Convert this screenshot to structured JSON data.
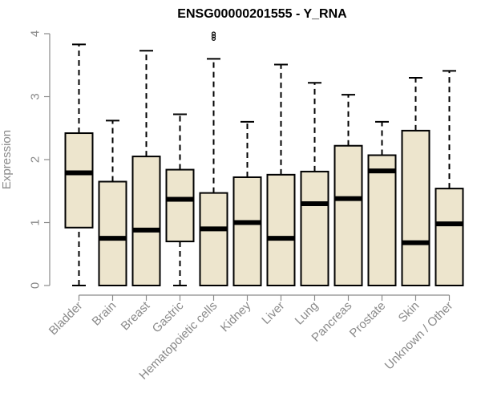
{
  "chart_data": {
    "type": "boxplot",
    "title": "ENSG00000201555 - Y_RNA",
    "xlabel": "",
    "ylabel": "Expression",
    "ylim": [
      0,
      4
    ],
    "yticks": [
      0,
      1,
      2,
      3,
      4
    ],
    "categories": [
      "Bladder",
      "Brain",
      "Breast",
      "Gastric",
      "Hematopoietic cells",
      "Kidney",
      "Liver",
      "Lung",
      "Pancreas",
      "Prostate",
      "Skin",
      "Unknown / Other"
    ],
    "boxes": [
      {
        "category": "Bladder",
        "min": 0.0,
        "q1": 0.92,
        "median": 1.79,
        "q3": 2.42,
        "max": 3.83,
        "outliers": []
      },
      {
        "category": "Brain",
        "min": 0.0,
        "q1": 0.0,
        "median": 0.75,
        "q3": 1.65,
        "max": 2.62,
        "outliers": []
      },
      {
        "category": "Breast",
        "min": 0.0,
        "q1": 0.0,
        "median": 0.88,
        "q3": 2.05,
        "max": 3.73,
        "outliers": []
      },
      {
        "category": "Gastric",
        "min": 0.0,
        "q1": 0.7,
        "median": 1.37,
        "q3": 1.84,
        "max": 2.72,
        "outliers": []
      },
      {
        "category": "Hematopoietic cells",
        "min": 0.0,
        "q1": 0.0,
        "median": 0.9,
        "q3": 1.47,
        "max": 3.6,
        "outliers": [
          3.92,
          3.96,
          4.0
        ]
      },
      {
        "category": "Kidney",
        "min": 0.0,
        "q1": 0.0,
        "median": 1.0,
        "q3": 1.72,
        "max": 2.6,
        "outliers": []
      },
      {
        "category": "Liver",
        "min": 0.0,
        "q1": 0.0,
        "median": 0.75,
        "q3": 1.76,
        "max": 3.51,
        "outliers": []
      },
      {
        "category": "Lung",
        "min": 0.0,
        "q1": 0.0,
        "median": 1.3,
        "q3": 1.81,
        "max": 3.22,
        "outliers": []
      },
      {
        "category": "Pancreas",
        "min": 0.0,
        "q1": 0.0,
        "median": 1.38,
        "q3": 2.22,
        "max": 3.03,
        "outliers": []
      },
      {
        "category": "Prostate",
        "min": 0.0,
        "q1": 0.0,
        "median": 1.82,
        "q3": 2.07,
        "max": 2.6,
        "outliers": []
      },
      {
        "category": "Skin",
        "min": 0.0,
        "q1": 0.0,
        "median": 0.68,
        "q3": 2.46,
        "max": 3.3,
        "outliers": []
      },
      {
        "category": "Unknown / Other",
        "min": 0.0,
        "q1": 0.0,
        "median": 0.98,
        "q3": 1.54,
        "max": 3.41,
        "outliers": []
      }
    ],
    "box_fill": "#ede5cd",
    "grid": false,
    "legend": "none"
  }
}
